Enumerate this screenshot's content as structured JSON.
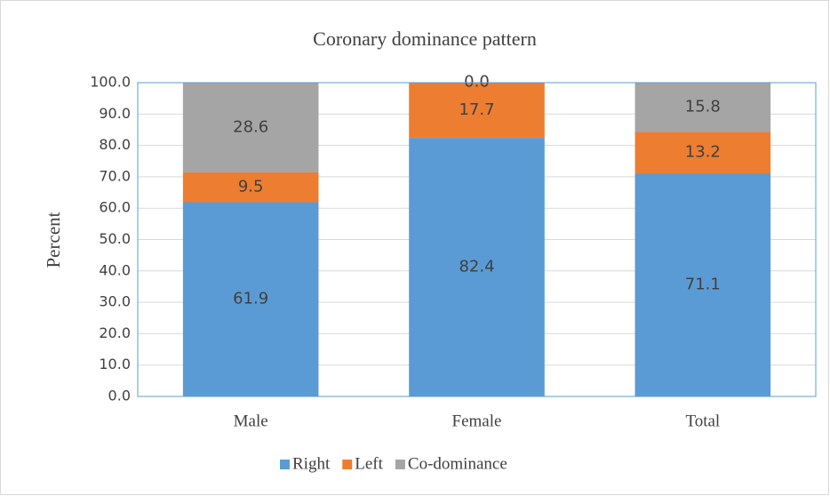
{
  "chart_data": {
    "type": "stacked_bar",
    "title": "Coronary dominance pattern",
    "ylabel": "Percent",
    "categories": [
      "Male",
      "Female",
      "Total"
    ],
    "series": [
      {
        "name": "Right",
        "color": "#5b9bd5",
        "values": [
          61.9,
          82.4,
          71.1
        ],
        "value_labels": [
          "61.9",
          "82.4",
          "71.1"
        ]
      },
      {
        "name": "Left",
        "color": "#ed7d31",
        "values": [
          9.5,
          17.7,
          13.2
        ],
        "value_labels": [
          "9.5",
          "17.7",
          "13.2"
        ]
      },
      {
        "name": "Co-dominance",
        "color": "#a5a5a5",
        "values": [
          28.6,
          0,
          15.8
        ],
        "value_labels": [
          "28.6",
          "0.0",
          "15.8"
        ]
      }
    ],
    "ylim": [
      0,
      100
    ],
    "yticks": [
      {
        "value": 0,
        "label": "0.0"
      },
      {
        "value": 10,
        "label": "10.0"
      },
      {
        "value": 20,
        "label": "20.0"
      },
      {
        "value": 30,
        "label": "30.0"
      },
      {
        "value": 40,
        "label": "40.0"
      },
      {
        "value": 50,
        "label": "50.0"
      },
      {
        "value": 60,
        "label": "60.0"
      },
      {
        "value": 70,
        "label": "70.0"
      },
      {
        "value": 80,
        "label": "80.0"
      },
      {
        "value": 90,
        "label": "90.0"
      },
      {
        "value": 100,
        "label": "100.0"
      }
    ],
    "grid": true,
    "legend": "bottom"
  }
}
